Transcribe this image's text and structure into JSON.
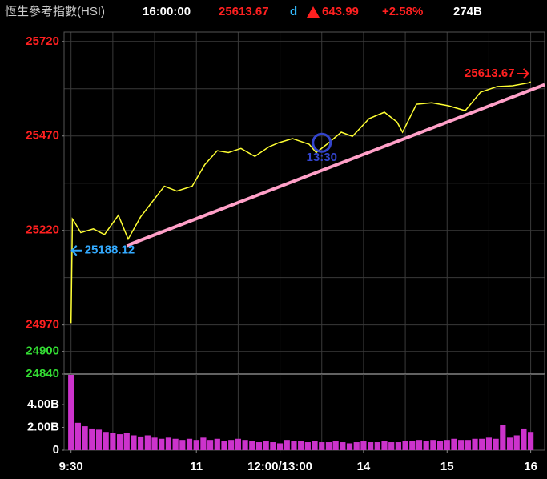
{
  "header": {
    "name": "恆生參考指數(HSI)",
    "time": "16:00:00",
    "last": "25613.67",
    "last_flag": "d",
    "change": "643.99",
    "change_pct": "+2.58%",
    "turnover": "274B"
  },
  "chart_data": [
    {
      "type": "line",
      "x": [
        0,
        1,
        2,
        7,
        16,
        24,
        34,
        41,
        50,
        59,
        67,
        76,
        87,
        96,
        105,
        113,
        122,
        132,
        142,
        149,
        159,
        171,
        176,
        185,
        194,
        202,
        214,
        225,
        234,
        238,
        248,
        259,
        271,
        283,
        294,
        306,
        317,
        329,
        330
      ],
      "series": [
        {
          "color": "#ffff33",
          "values": [
            24975,
            25250,
            25245,
            25214,
            25224,
            25209,
            25260,
            25197,
            25256,
            25299,
            25337,
            25324,
            25337,
            25394,
            25431,
            25426,
            25437,
            25416,
            25441,
            25452,
            25463,
            25448,
            25426,
            25452,
            25480,
            25469,
            25516,
            25533,
            25507,
            25480,
            25554,
            25558,
            25550,
            25537,
            25586,
            25601,
            25603,
            25611,
            25613.67
          ]
        }
      ],
      "trend": {
        "x": [
          40,
          340
        ],
        "values": [
          25180,
          25606
        ],
        "color": "#ffa0c8"
      },
      "annotations": [
        {
          "text": "25188.12",
          "x": 0,
          "y": 25188.12,
          "color": "#33aaff",
          "arrow": "left"
        },
        {
          "text": "25613.67",
          "x": 330,
          "y": 25613.67,
          "color": "#ff2020",
          "arrow": "right"
        },
        {
          "text": "13:30",
          "x": 180,
          "y": 25452,
          "color": "#3344cc",
          "arrow": "circle"
        }
      ],
      "xlim": [
        -5,
        340
      ],
      "ylim": [
        24840,
        25745
      ],
      "yticks": [
        25720,
        25470,
        25220,
        24970,
        24900,
        24840
      ],
      "ytick_colors": [
        "#ff2020",
        "#ff2020",
        "#ff2020",
        "#ff2020",
        "#33dd33",
        "#33dd33"
      ],
      "grid_x": [
        0,
        30,
        60,
        90,
        120,
        150,
        180,
        210,
        240,
        270,
        300,
        330
      ],
      "grid_y": [
        25720,
        25595,
        25470,
        25345,
        25220,
        25095,
        24970,
        24900
      ]
    },
    {
      "type": "bar",
      "color": "#cc33cc",
      "x": [
        0,
        5,
        10,
        15,
        20,
        25,
        30,
        35,
        40,
        45,
        50,
        55,
        60,
        65,
        70,
        75,
        80,
        85,
        90,
        95,
        100,
        105,
        110,
        115,
        120,
        125,
        130,
        135,
        140,
        145,
        150,
        155,
        160,
        165,
        170,
        175,
        180,
        185,
        190,
        195,
        200,
        205,
        210,
        215,
        220,
        225,
        230,
        235,
        240,
        245,
        250,
        255,
        260,
        265,
        270,
        275,
        280,
        285,
        290,
        295,
        300,
        305,
        310,
        315,
        320,
        325,
        330
      ],
      "values": [
        6.6,
        2.4,
        2.1,
        1.9,
        1.8,
        1.6,
        1.5,
        1.4,
        1.5,
        1.3,
        1.2,
        1.3,
        1.1,
        1.0,
        1.1,
        1.0,
        0.9,
        1.0,
        0.9,
        1.1,
        0.9,
        1.0,
        0.8,
        0.9,
        1.0,
        0.9,
        0.8,
        0.7,
        0.8,
        0.7,
        0.6,
        0.9,
        0.8,
        0.8,
        0.7,
        0.8,
        0.7,
        0.7,
        0.8,
        0.7,
        0.6,
        0.7,
        0.8,
        0.7,
        0.7,
        0.8,
        0.7,
        0.7,
        0.8,
        0.8,
        0.9,
        0.8,
        0.9,
        0.8,
        0.9,
        1.0,
        0.9,
        0.9,
        1.0,
        1.0,
        1.1,
        1.0,
        2.2,
        1.1,
        1.3,
        1.9,
        1.6
      ],
      "xlim": [
        -5,
        340
      ],
      "ylim": [
        0,
        6.67
      ],
      "yticks": [
        {
          "value": 4,
          "label": "4.00B"
        },
        {
          "value": 2,
          "label": "2.00B"
        },
        0
      ],
      "xticks": [
        {
          "value": 0,
          "label": "9:30"
        },
        {
          "value": 90,
          "label": "11"
        },
        {
          "value": 150,
          "label": "12:00/13:00"
        },
        {
          "value": 210,
          "label": "14"
        },
        {
          "value": 270,
          "label": "15"
        },
        {
          "value": 330,
          "label": "16"
        }
      ],
      "grid_x": [
        0,
        30,
        60,
        90,
        120,
        150,
        180,
        210,
        240,
        270,
        300,
        330
      ]
    }
  ]
}
